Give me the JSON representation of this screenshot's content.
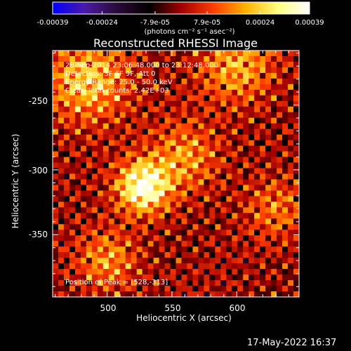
{
  "chart_data": {
    "type": "heatmap",
    "title": "Reconstructed RHESSI Image",
    "colorbar": {
      "tick_labels": [
        "-0.00039",
        "-0.00024",
        "-7.9e-05",
        "7.9e-05",
        "0.00024",
        "0.00039"
      ],
      "range": [
        -0.00039,
        0.00039
      ],
      "units_label": "(photons cm⁻² s⁻¹ asec⁻²)",
      "colormap": [
        "#0000ff",
        "#4b1aa6",
        "#2a0a3a",
        "#000000",
        "#a00000",
        "#ff3c00",
        "#ffb000",
        "#ffff80",
        "#ffffff"
      ]
    },
    "annotations": {
      "time_range": "28-Sep-2014 23:06:48.000 to 23:12:48.000",
      "detectors": "Detectors: 3F 6F 9F, Att 0",
      "energy": "Energy Range: 25.0 - 50.0 keV",
      "clean": "Clean    Total counts: 2.42E+03",
      "peak": "Position of Peak = [528,-313]"
    },
    "xlabel": "Heliocentric X (arcsec)",
    "ylabel": "Heliocentric Y (arcsec)",
    "xlim": [
      458,
      648
    ],
    "ylim": [
      -398,
      -208
    ],
    "xticks": [
      "500",
      "550",
      "600"
    ],
    "yticks": [
      "-250",
      "-300",
      "-350"
    ],
    "peak_position": [
      528,
      -313
    ],
    "grid": false
  },
  "footer": {
    "timestamp": "17-May-2022 16:37"
  }
}
